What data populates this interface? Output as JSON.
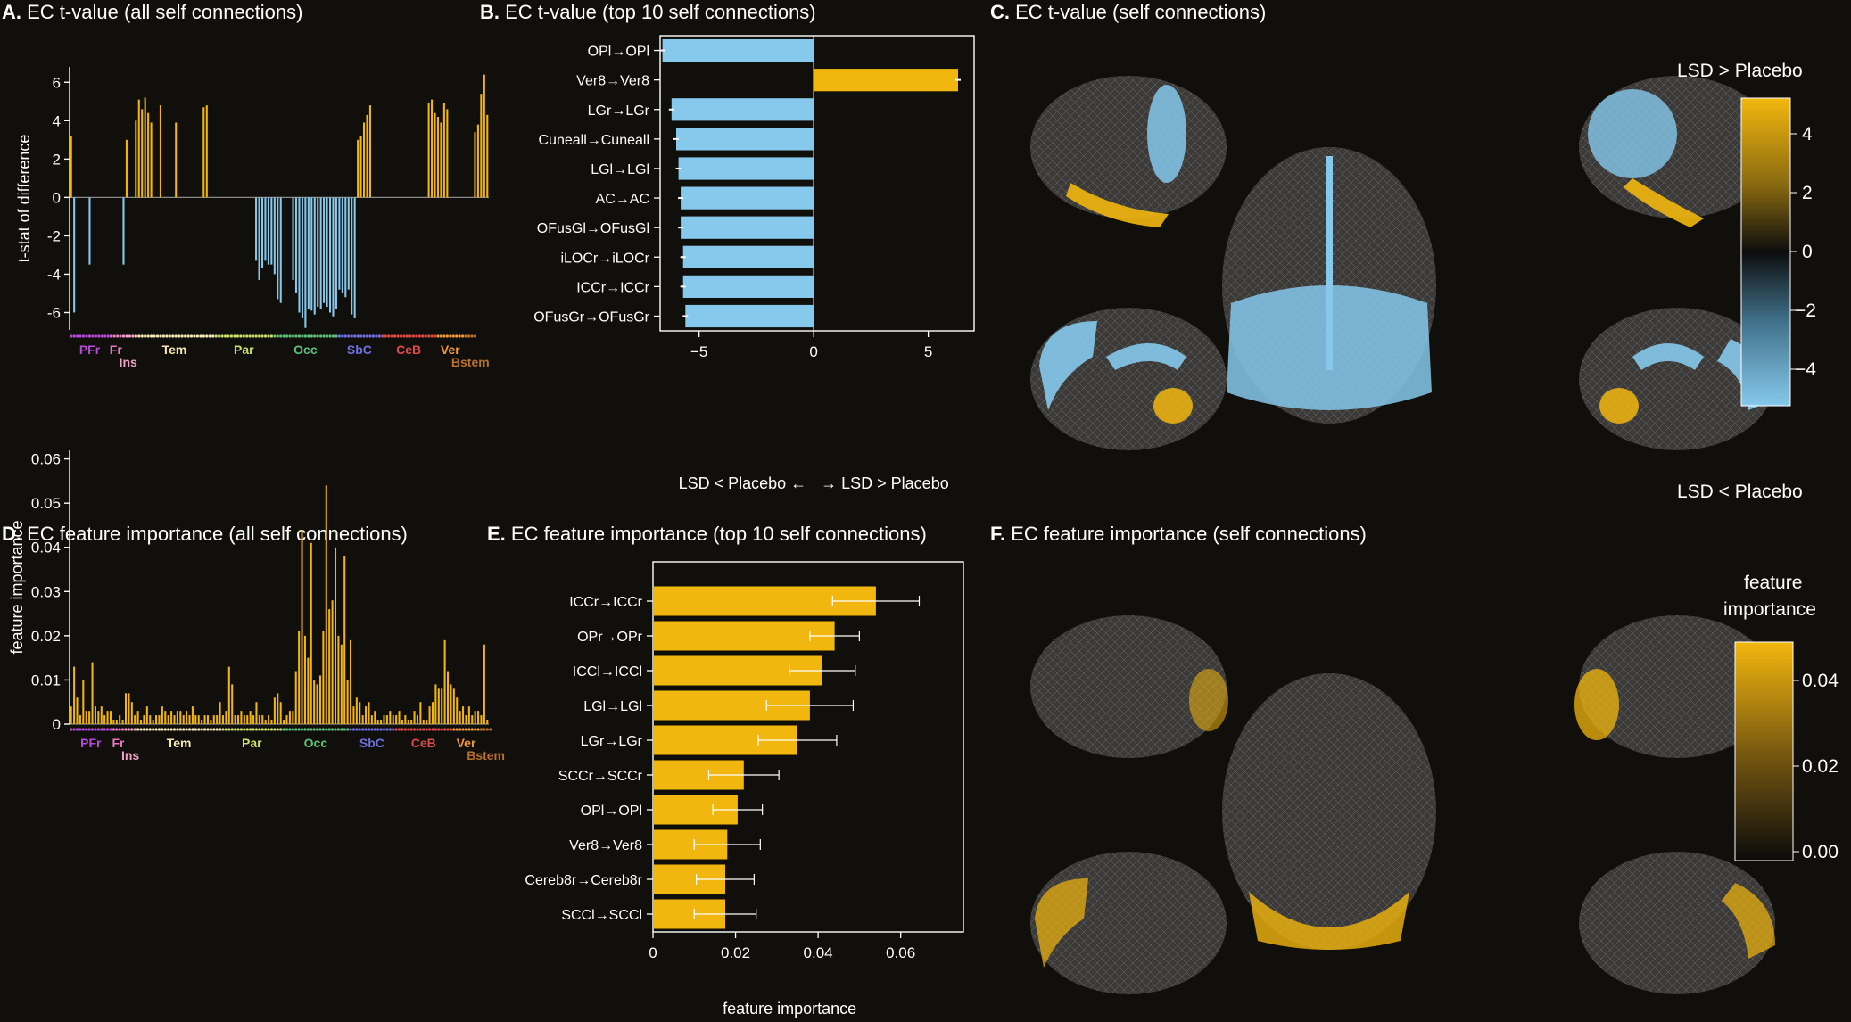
{
  "colors": {
    "background": "#110f0b",
    "positive": "#f2b70e",
    "negative": "#86c9ec",
    "axis": "#ffffff",
    "brain_base": "#3b3a38"
  },
  "chart_data": [
    {
      "id": "A",
      "type": "bar",
      "panel_letter": "A.",
      "title": "EC t-value (all self connections)",
      "ylabel": "t-stat of difference",
      "ylim": [
        -7,
        7.5
      ],
      "yticks": [
        -6,
        -4,
        -2,
        0,
        2,
        4,
        6
      ],
      "values": [
        3.2,
        -6.0,
        0,
        0,
        0,
        0,
        -3.5,
        0,
        0,
        0,
        0,
        0,
        0,
        0,
        0,
        0,
        0,
        -3.5,
        3.0,
        0,
        0,
        4.0,
        5.1,
        4.6,
        5.2,
        4.4,
        3.9,
        0,
        0,
        4.8,
        0,
        0,
        0,
        0,
        3.9,
        0,
        0,
        0,
        0,
        0,
        0,
        0,
        0,
        4.7,
        4.8,
        0,
        0,
        0,
        0,
        0,
        0,
        0,
        0,
        0,
        0,
        0,
        0,
        0,
        0,
        0,
        -3.3,
        -4.3,
        -3.7,
        -3.3,
        -3.5,
        -3.5,
        -4.0,
        -5.3,
        -5.5,
        0,
        0,
        0,
        -4.3,
        -5.0,
        -6.0,
        -6.3,
        -6.8,
        -5.8,
        -5.9,
        -6.1,
        -5.7,
        -5.8,
        -5.5,
        -5.7,
        -6.0,
        -6.2,
        -5.8,
        -4.8,
        -5.0,
        -5.2,
        -4.8,
        -6.1,
        -6.3,
        3.0,
        3.2,
        3.9,
        4.3,
        4.8,
        0,
        0,
        0,
        0,
        0,
        0,
        0,
        0,
        0,
        0,
        0,
        0,
        0,
        0,
        0,
        0,
        0,
        0,
        4.9,
        5.1,
        4.4,
        4.2,
        3.9,
        4.9,
        4.6,
        0,
        0,
        0,
        0,
        0,
        0,
        0,
        0,
        3.4,
        3.8,
        5.4,
        6.4,
        4.3
      ],
      "regions": [
        {
          "label": "PFr",
          "start": 0,
          "end": 13,
          "color": "#b64ad9"
        },
        {
          "label": "Fr",
          "start": 13,
          "end": 17,
          "color": "#e878c4"
        },
        {
          "label": "Ins",
          "start": 17,
          "end": 21,
          "color": "#f2a0c8"
        },
        {
          "label": "Tem",
          "start": 21,
          "end": 47,
          "color": "#f5e8b8"
        },
        {
          "label": "Par",
          "start": 47,
          "end": 66,
          "color": "#c7e06b"
        },
        {
          "label": "Occ",
          "start": 66,
          "end": 87,
          "color": "#5cc07a"
        },
        {
          "label": "SbC",
          "start": 87,
          "end": 101,
          "color": "#6f70e0"
        },
        {
          "label": "CeB",
          "start": 101,
          "end": 119,
          "color": "#e04848"
        },
        {
          "label": "Ver",
          "start": 119,
          "end": 128,
          "color": "#f09a3a"
        },
        {
          "label": "Bstem",
          "start": 128,
          "end": 132,
          "color": "#b8702a"
        }
      ]
    },
    {
      "id": "B",
      "type": "bar",
      "orientation": "horizontal",
      "panel_letter": "B.",
      "title": "EC t-value (top 10 self connections)",
      "categories": [
        "OPl→OPl",
        "Ver8→Ver8",
        "LGr→LGr",
        "Cuneall→Cuneall",
        "LGl→LGl",
        "AC→AC",
        "OFusGl→OFusGl",
        "iLOCr→iLOCr",
        "ICCr→ICCr",
        "OFusGr→OFusGr"
      ],
      "values": [
        -6.6,
        6.3,
        -6.2,
        -6.0,
        -5.9,
        -5.8,
        -5.8,
        -5.7,
        -5.7,
        -5.6
      ],
      "xlim": [
        -6.7,
        7.0
      ],
      "xticks": [
        -5,
        0,
        5
      ],
      "xlabel_left": "LSD < Placebo ←",
      "xlabel_right": "→ LSD > Placebo"
    },
    {
      "id": "D",
      "type": "bar",
      "panel_letter": "D.",
      "title": "EC feature importance (all self connections)",
      "ylabel": "feature importance",
      "ylim": [
        0,
        0.069
      ],
      "yticks": [
        0,
        0.01,
        0.02,
        0.03,
        0.04,
        0.05,
        0.06
      ],
      "ytick_labels": [
        "0",
        "0.01",
        "0.02",
        "0.03",
        "0.04",
        "0.05",
        "0.06"
      ],
      "values": [
        0.004,
        0.013,
        0.006,
        0.002,
        0.01,
        0.003,
        0.003,
        0.014,
        0.004,
        0.003,
        0.004,
        0.002,
        0.003,
        0.003,
        0.001,
        0.001,
        0.002,
        0.001,
        0.007,
        0.007,
        0.005,
        0.002,
        0.003,
        0.001,
        0.002,
        0.004,
        0.002,
        0.001,
        0.002,
        0.002,
        0.004,
        0.003,
        0.002,
        0.003,
        0.002,
        0.003,
        0.003,
        0.002,
        0.003,
        0.002,
        0.004,
        0.002,
        0.002,
        0.001,
        0.002,
        0.002,
        0.001,
        0.002,
        0.002,
        0.005,
        0.002,
        0.003,
        0.013,
        0.009,
        0.002,
        0.002,
        0.003,
        0.002,
        0.002,
        0.003,
        0.002,
        0.005,
        0.002,
        0.002,
        0.001,
        0.002,
        0.001,
        0.006,
        0.007,
        0.005,
        0.001,
        0.002,
        0.003,
        0.003,
        0.012,
        0.021,
        0.044,
        0.02,
        0.015,
        0.041,
        0.01,
        0.009,
        0.011,
        0.021,
        0.054,
        0.026,
        0.028,
        0.04,
        0.02,
        0.018,
        0.038,
        0.01,
        0.019,
        0.004,
        0.006,
        0.005,
        0.002,
        0.004,
        0.005,
        0.002,
        0.003,
        0.001,
        0.001,
        0.002,
        0.002,
        0.003,
        0.002,
        0.002,
        0.003,
        0.001,
        0.002,
        0.001,
        0.001,
        0.003,
        0.002,
        0.005,
        0.001,
        0.001,
        0.004,
        0.005,
        0.009,
        0.008,
        0.008,
        0.019,
        0.012,
        0.009,
        0.008,
        0.006,
        0.003,
        0.004,
        0.002,
        0.004,
        0.002,
        0.003,
        0.003,
        0.002,
        0.018,
        0.001
      ],
      "regions": [
        {
          "label": "PFr",
          "start": 0,
          "end": 14,
          "color": "#b64ad9"
        },
        {
          "label": "Fr",
          "start": 14,
          "end": 18,
          "color": "#e878c4"
        },
        {
          "label": "Ins",
          "start": 18,
          "end": 22,
          "color": "#f2a0c8"
        },
        {
          "label": "Tem",
          "start": 22,
          "end": 50,
          "color": "#f5e8b8"
        },
        {
          "label": "Par",
          "start": 50,
          "end": 70,
          "color": "#c7e06b"
        },
        {
          "label": "Occ",
          "start": 70,
          "end": 92,
          "color": "#5cc07a"
        },
        {
          "label": "SbC",
          "start": 92,
          "end": 107,
          "color": "#6f70e0"
        },
        {
          "label": "CeB",
          "start": 107,
          "end": 126,
          "color": "#e04848"
        },
        {
          "label": "Ver",
          "start": 126,
          "end": 135,
          "color": "#f09a3a"
        },
        {
          "label": "Bstem",
          "start": 135,
          "end": 139,
          "color": "#b8702a"
        }
      ]
    },
    {
      "id": "E",
      "type": "bar",
      "orientation": "horizontal",
      "panel_letter": "E.",
      "title": "EC feature importance (top 10 self connections)",
      "categories": [
        "ICCr→ICCr",
        "OPr→OPr",
        "ICCl→ICCl",
        "LGl→LGl",
        "LGr→LGr",
        "SCCr→SCCr",
        "OPl→OPl",
        "Ver8→Ver8",
        "Cereb8r→Cereb8r",
        "SCCl→SCCl"
      ],
      "values": [
        0.054,
        0.044,
        0.041,
        0.038,
        0.035,
        0.022,
        0.0205,
        0.018,
        0.0175,
        0.0175
      ],
      "errors": [
        0.0105,
        0.006,
        0.008,
        0.0105,
        0.0095,
        0.0085,
        0.006,
        0.008,
        0.007,
        0.0075
      ],
      "xlim": [
        0,
        0.0752
      ],
      "xticks": [
        0,
        0.02,
        0.04,
        0.06
      ],
      "xtick_labels": [
        "0",
        "0.02",
        "0.04",
        "0.06"
      ],
      "xlabel": "feature importance"
    },
    {
      "id": "C",
      "type": "heatmap",
      "panel_letter": "C.",
      "title": "EC t-value (self connections)",
      "colorbar_label_top": "LSD > Placebo",
      "colorbar_label_bottom": "LSD < Placebo",
      "colorbar_range": [
        -5,
        5
      ],
      "colorbar_ticks": [
        "4",
        "2",
        "0",
        "−2",
        "−4"
      ]
    },
    {
      "id": "F",
      "type": "heatmap",
      "panel_letter": "F.",
      "title": "EC feature importance (self connections)",
      "colorbar_label_line1": "feature",
      "colorbar_label_line2": "importance",
      "colorbar_range": [
        0,
        0.05
      ],
      "colorbar_ticks": [
        "0.04",
        "0.02",
        "0.00"
      ]
    }
  ]
}
